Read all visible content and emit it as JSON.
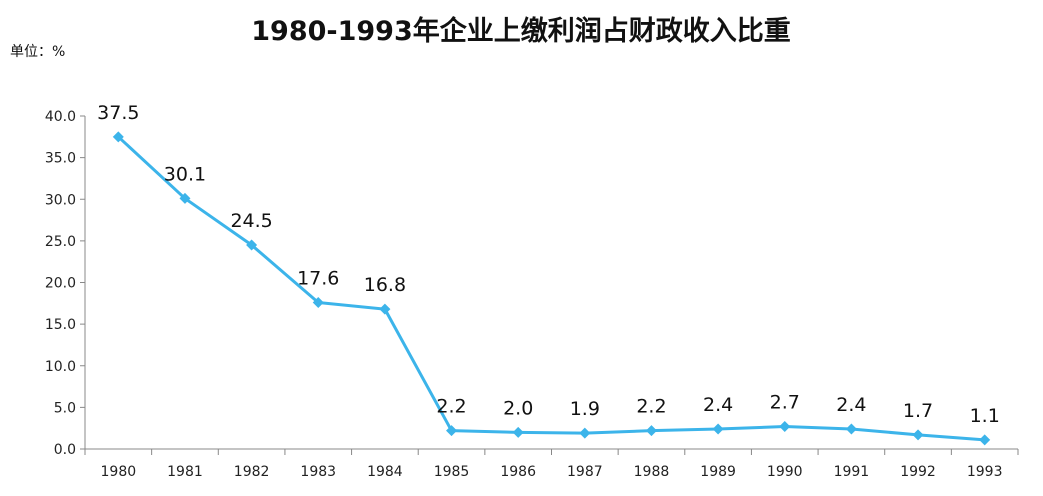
{
  "chart_data": {
    "type": "line",
    "title": "1980-1993年企业上缴利润占财政收入比重",
    "unit_label": "单位：%",
    "x": [
      "1980",
      "1981",
      "1982",
      "1983",
      "1984",
      "1985",
      "1986",
      "1987",
      "1988",
      "1989",
      "1990",
      "1991",
      "1992",
      "1993"
    ],
    "series": [
      {
        "values": [
          37.5,
          30.1,
          24.5,
          17.6,
          16.8,
          2.2,
          2.0,
          1.9,
          2.2,
          2.4,
          2.7,
          2.4,
          1.7,
          1.1
        ],
        "color": "#3cb4ea",
        "marker": "diamond"
      }
    ],
    "data_labels": [
      "37.5",
      "30.1",
      "24.5",
      "17.6",
      "16.8",
      "2.2",
      "2.0",
      "1.9",
      "2.2",
      "2.4",
      "2.7",
      "2.4",
      "1.7",
      "1.1"
    ],
    "y_ticks": [
      "0.0",
      "5.0",
      "10.0",
      "15.0",
      "20.0",
      "25.0",
      "30.0",
      "35.0",
      "40.0"
    ],
    "ylim": [
      0,
      40
    ],
    "grid": false,
    "legend": "none"
  }
}
